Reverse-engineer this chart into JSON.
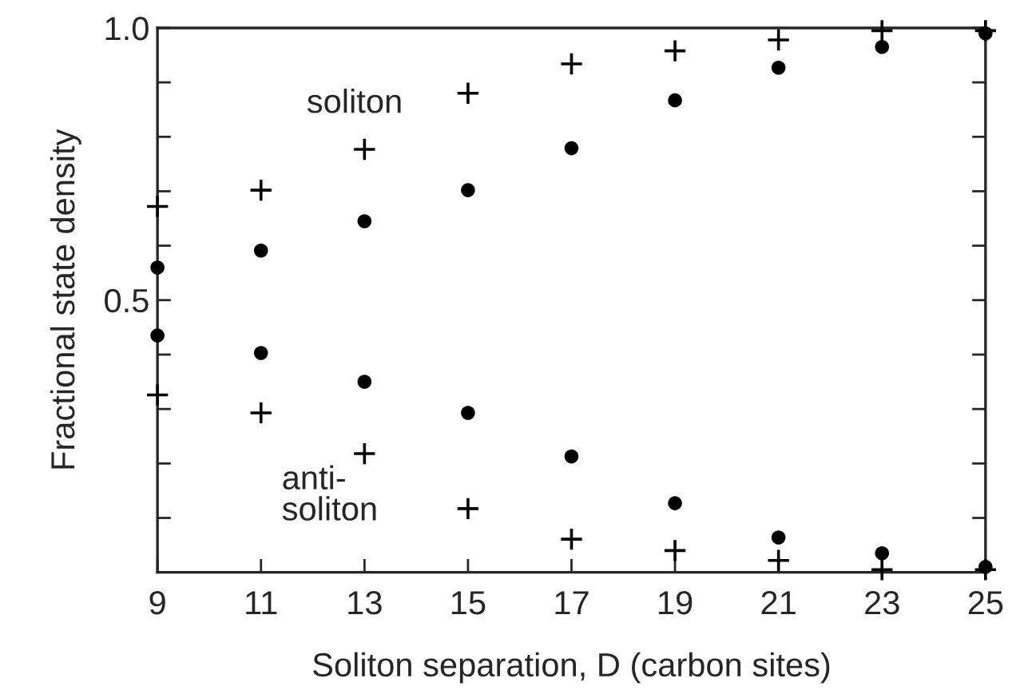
{
  "chart_data": {
    "type": "scatter",
    "xlabel": "Soliton separation, D (carbon sites)",
    "ylabel": "Fractional state density",
    "x": [
      9,
      11,
      13,
      15,
      17,
      19,
      21,
      23,
      25
    ],
    "series": [
      {
        "color": "#000000",
        "marker": "cross",
        "values": [
          0.672,
          0.702,
          0.777,
          0.88,
          0.934,
          0.958,
          0.978,
          0.995,
          0.995
        ]
      },
      {
        "color": "#000000",
        "marker": "circle",
        "values": [
          0.56,
          0.591,
          0.645,
          0.702,
          0.779,
          0.867,
          0.927,
          0.965,
          0.99
        ]
      },
      {
        "color": "#000000",
        "marker": "circle",
        "values": [
          0.435,
          0.403,
          0.35,
          0.293,
          0.213,
          0.127,
          0.064,
          0.035,
          0.01
        ]
      },
      {
        "color": "#000000",
        "marker": "cross",
        "values": [
          0.326,
          0.293,
          0.218,
          0.117,
          0.061,
          0.04,
          0.022,
          0.005,
          0.005
        ]
      }
    ],
    "annotations": [
      "soliton",
      "anti-\nsoliton"
    ],
    "xlim": [
      9,
      25
    ],
    "xticks": [
      9,
      11,
      13,
      15,
      17,
      19,
      21,
      23,
      25
    ],
    "ylim": [
      0,
      1
    ],
    "yticks": [
      {
        "value": 0.1,
        "label": null
      },
      {
        "value": 0.2,
        "label": null
      },
      {
        "value": 0.3,
        "label": null
      },
      {
        "value": 0.4,
        "label": null
      },
      0.5,
      {
        "value": 0.6,
        "label": null
      },
      {
        "value": 0.7,
        "label": null
      },
      {
        "value": 0.8,
        "label": null
      },
      {
        "value": 0.9,
        "label": null
      },
      {
        "value": 1,
        "label": "1.0"
      }
    ],
    "grid": false,
    "legend": false
  }
}
